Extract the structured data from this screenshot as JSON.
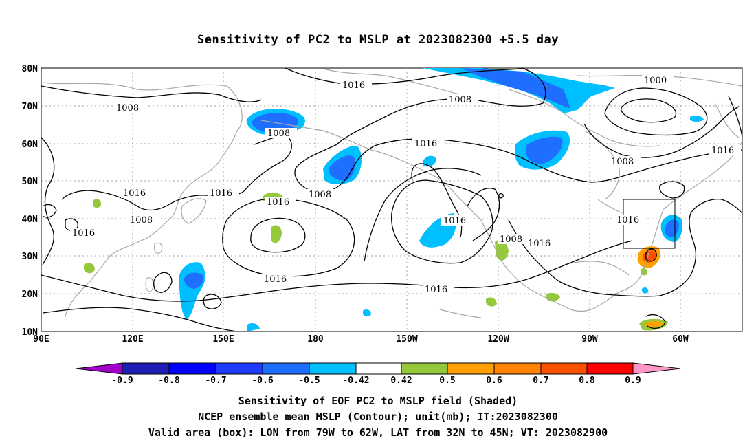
{
  "title": "Sensitivity of PC2 to MSLP at 2023082300 +5.5 day",
  "map": {
    "lat_labels": [
      "80N",
      "70N",
      "60N",
      "50N",
      "40N",
      "30N",
      "20N",
      "10N"
    ],
    "lon_labels": [
      "90E",
      "120E",
      "150E",
      "180",
      "150W",
      "120W",
      "90W",
      "60W"
    ],
    "contour_labels": [
      "1016",
      "1008",
      "1000",
      "1008",
      "1016",
      "1008",
      "1016",
      "1016",
      "1016",
      "1008",
      "1016",
      "1008",
      "1016",
      "1016",
      "1016",
      "1016",
      "1008",
      "1016",
      "1016",
      "1008"
    ]
  },
  "colorbar": {
    "labels": [
      "-0.9",
      "-0.8",
      "-0.7",
      "-0.6",
      "-0.5",
      "-0.42",
      "0.42",
      "0.5",
      "0.6",
      "0.7",
      "0.8",
      "0.9"
    ],
    "colors": [
      "#a000c8",
      "#1e1eb4",
      "#0000ff",
      "#1e3cff",
      "#1e6eff",
      "#00bfff",
      "#ffffff",
      "#96c83c",
      "#ffa000",
      "#ff8200",
      "#ff5000",
      "#ff0000",
      "#ff96c8"
    ]
  },
  "captions": {
    "line1": "Sensitivity of EOF PC2 to MSLP field (Shaded)",
    "line2": "NCEP ensemble mean MSLP (Contour); unit(mb); IT:2023082300",
    "line3": "Valid area (box): LON from 79W to 62W, LAT from 32N to 45N; VT: 2023082900"
  }
}
